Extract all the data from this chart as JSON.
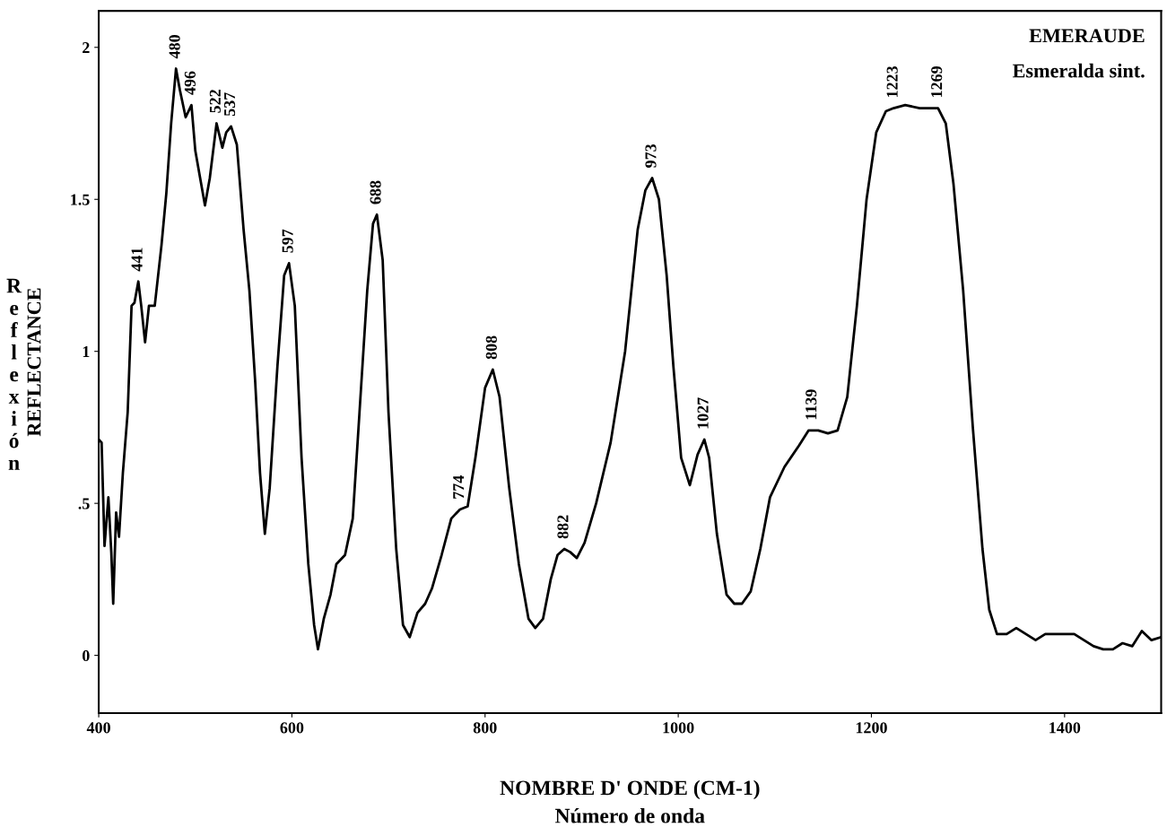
{
  "chart_data": {
    "type": "line",
    "title": "EMERAUDE",
    "subtitle": "Esmeralda sint.",
    "xlabel": "NOMBRE D' ONDE (CM-1)\nNúmero de onda",
    "ylabel": "REFLECTANCE",
    "xlim": [
      400,
      1500
    ],
    "ylim": [
      -0.19,
      2.12
    ],
    "xticks": [
      400,
      600,
      800,
      1000,
      1200,
      1400
    ],
    "yticks": [
      0,
      {
        "value": 0.5,
        "label": ".5"
      },
      1,
      1.5,
      2
    ],
    "grid": false,
    "legend": false,
    "x": [
      400,
      403,
      406,
      410,
      413,
      415,
      418,
      421,
      425,
      430,
      434,
      437,
      441,
      444,
      448,
      452,
      458,
      465,
      470,
      475,
      480,
      484,
      490,
      496,
      500,
      505,
      510,
      515,
      522,
      528,
      532,
      537,
      543,
      550,
      556,
      562,
      567,
      572,
      577,
      585,
      592,
      597,
      603,
      610,
      617,
      623,
      627,
      633,
      640,
      646,
      655,
      663,
      670,
      678,
      684,
      688,
      694,
      700,
      708,
      715,
      722,
      730,
      738,
      745,
      755,
      765,
      774,
      782,
      790,
      800,
      808,
      815,
      825,
      835,
      845,
      852,
      860,
      868,
      875,
      882,
      888,
      895,
      903,
      915,
      930,
      945,
      958,
      966,
      973,
      980,
      988,
      995,
      1003,
      1012,
      1020,
      1027,
      1032,
      1040,
      1050,
      1058,
      1066,
      1075,
      1085,
      1095,
      1110,
      1125,
      1135,
      1145,
      1155,
      1165,
      1175,
      1185,
      1195,
      1205,
      1215,
      1223,
      1235,
      1250,
      1269,
      1277,
      1285,
      1295,
      1305,
      1315,
      1322,
      1330,
      1340,
      1350,
      1360,
      1370,
      1380,
      1400,
      1410,
      1420,
      1430,
      1440,
      1450,
      1460,
      1470,
      1480,
      1490,
      1500
    ],
    "series": [
      {
        "color": "#000000",
        "values": [
          0.71,
          0.7,
          0.36,
          0.52,
          0.34,
          0.17,
          0.47,
          0.39,
          0.6,
          0.8,
          1.15,
          1.16,
          1.23,
          1.15,
          1.03,
          1.15,
          1.15,
          1.35,
          1.52,
          1.75,
          1.93,
          1.86,
          1.77,
          1.81,
          1.66,
          1.57,
          1.48,
          1.57,
          1.75,
          1.67,
          1.72,
          1.74,
          1.68,
          1.4,
          1.2,
          0.9,
          0.6,
          0.4,
          0.55,
          0.95,
          1.25,
          1.29,
          1.15,
          0.65,
          0.3,
          0.1,
          0.02,
          0.12,
          0.2,
          0.3,
          0.33,
          0.45,
          0.8,
          1.2,
          1.42,
          1.45,
          1.3,
          0.8,
          0.35,
          0.1,
          0.06,
          0.14,
          0.17,
          0.22,
          0.33,
          0.45,
          0.48,
          0.49,
          0.65,
          0.88,
          0.94,
          0.85,
          0.55,
          0.3,
          0.12,
          0.09,
          0.12,
          0.25,
          0.33,
          0.35,
          0.34,
          0.32,
          0.37,
          0.5,
          0.7,
          1.0,
          1.4,
          1.53,
          1.57,
          1.5,
          1.25,
          0.95,
          0.65,
          0.56,
          0.66,
          0.71,
          0.65,
          0.4,
          0.2,
          0.17,
          0.17,
          0.21,
          0.35,
          0.52,
          0.62,
          0.69,
          0.74,
          0.74,
          0.73,
          0.74,
          0.85,
          1.15,
          1.5,
          1.72,
          1.79,
          1.8,
          1.81,
          1.8,
          1.8,
          1.75,
          1.55,
          1.2,
          0.75,
          0.35,
          0.15,
          0.07,
          0.07,
          0.09,
          0.07,
          0.05,
          0.07,
          0.07,
          0.07,
          0.05,
          0.03,
          0.02,
          0.02,
          0.04,
          0.03,
          0.08,
          0.05,
          0.06
        ]
      }
    ],
    "annotations": [
      "Reflexión",
      {
        "text": "441",
        "x": 441,
        "y": 1.23
      },
      {
        "text": "480",
        "x": 480,
        "y": 1.93
      },
      {
        "text": "496",
        "x": 496,
        "y": 1.81
      },
      {
        "text": "522",
        "x": 522,
        "y": 1.75
      },
      {
        "text": "537",
        "x": 537,
        "y": 1.74
      },
      {
        "text": "597",
        "x": 597,
        "y": 1.29
      },
      {
        "text": "688",
        "x": 688,
        "y": 1.45
      },
      {
        "text": "774",
        "x": 774,
        "y": 0.48
      },
      {
        "text": "808",
        "x": 808,
        "y": 0.94
      },
      {
        "text": "882",
        "x": 882,
        "y": 0.35
      },
      {
        "text": "973",
        "x": 973,
        "y": 1.57
      },
      {
        "text": "1027",
        "x": 1027,
        "y": 0.71
      },
      {
        "text": "1139",
        "x": 1139,
        "y": 0.74
      },
      {
        "text": "1223",
        "x": 1223,
        "y": 1.8
      },
      {
        "text": "1269",
        "x": 1269,
        "y": 1.8
      }
    ]
  }
}
